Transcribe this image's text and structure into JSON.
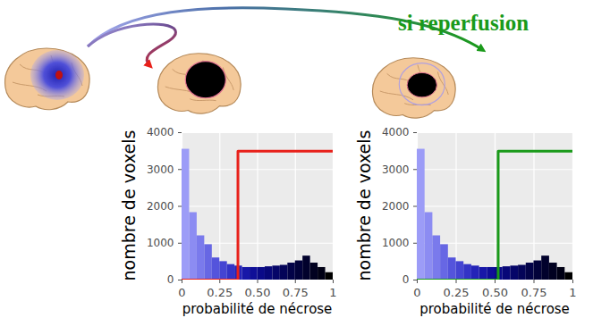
{
  "chart_data": [
    {
      "type": "histogram",
      "xlabel": "probabilité de nécrose",
      "ylabel": "nombre de voxels",
      "bins": [
        0,
        0.05,
        0.1,
        0.15,
        0.2,
        0.25,
        0.3,
        0.35,
        0.4,
        0.45,
        0.5,
        0.55,
        0.6,
        0.65,
        0.7,
        0.75,
        0.8,
        0.85,
        0.9,
        0.95,
        1
      ],
      "values": [
        3550,
        1830,
        1200,
        960,
        600,
        500,
        420,
        380,
        340,
        340,
        340,
        360,
        380,
        400,
        460,
        520,
        650,
        460,
        340,
        200
      ],
      "colors": [
        "#9c9cf7",
        "#8c8cf2",
        "#7a7aec",
        "#6767e4",
        "#5454dc",
        "#4444d2",
        "#3333c6",
        "#2424b8",
        "#1818a8",
        "#0f0f98",
        "#0a0a88",
        "#070778",
        "#050568",
        "#040458",
        "#030348",
        "#02023a",
        "#01012c",
        "#010120",
        "#000014",
        "#000000"
      ],
      "lines": [
        {
          "color": "#e8201a",
          "x": [
            0,
            0.37,
            0.37,
            1
          ],
          "values": [
            0,
            0,
            3500,
            3500
          ]
        }
      ],
      "xlim": [
        0,
        1
      ],
      "ylim": [
        0,
        4000
      ],
      "xticks": [
        0,
        0.25,
        {
          "value": 0.5,
          "label": "0.50"
        },
        0.75,
        1
      ],
      "yticks": [
        0,
        1000,
        2000,
        3000,
        4000
      ],
      "grid": true
    },
    {
      "type": "histogram",
      "annotation": "si reperfusion",
      "annotation_color": "#1a9a1a",
      "xlabel": "probabilité de nécrose",
      "ylabel": "nombre de voxels",
      "bins": [
        0,
        0.05,
        0.1,
        0.15,
        0.2,
        0.25,
        0.3,
        0.35,
        0.4,
        0.45,
        0.5,
        0.55,
        0.6,
        0.65,
        0.7,
        0.75,
        0.8,
        0.85,
        0.9,
        0.95,
        1
      ],
      "values": [
        3550,
        1830,
        1200,
        960,
        600,
        500,
        420,
        380,
        340,
        340,
        340,
        360,
        380,
        400,
        460,
        520,
        650,
        460,
        340,
        200
      ],
      "colors": [
        "#9c9cf7",
        "#8c8cf2",
        "#7a7aec",
        "#6767e4",
        "#5454dc",
        "#4444d2",
        "#3333c6",
        "#2424b8",
        "#1818a8",
        "#0f0f98",
        "#0a0a88",
        "#070778",
        "#050568",
        "#040458",
        "#030348",
        "#02023a",
        "#01012c",
        "#010120",
        "#000014",
        "#000000"
      ],
      "lines": [
        {
          "color": "#1a9a1a",
          "x": [
            0,
            0.52,
            0.52,
            1
          ],
          "values": [
            0,
            0,
            3500,
            3500
          ]
        }
      ],
      "xlim": [
        0,
        1
      ],
      "ylim": [
        0,
        4000
      ],
      "xticks": [
        0,
        0.25,
        {
          "value": 0.5,
          "label": "0.50"
        },
        0.75,
        1
      ],
      "yticks": [
        0,
        1000,
        2000,
        3000,
        4000
      ],
      "grid": true
    }
  ]
}
